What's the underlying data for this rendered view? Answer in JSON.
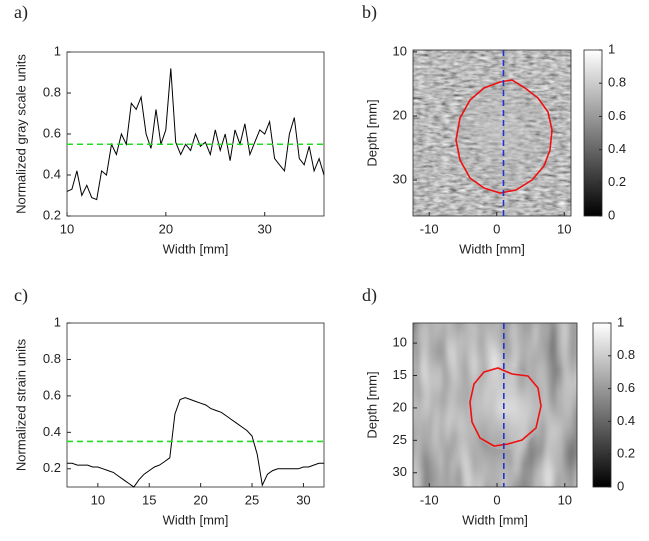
{
  "chart_data": [
    {
      "type": "line",
      "panel": "a)",
      "ylabel": "Normalized gray scale units",
      "xlabel": "Width [mm]",
      "xlim": [
        10,
        36
      ],
      "xticks": [
        10,
        20,
        30
      ],
      "ylim": [
        0.2,
        1
      ],
      "yticks": [
        0.2,
        0.4,
        0.6,
        0.8,
        1
      ],
      "color": "#000000",
      "hline": 0.55,
      "hline_color": "#22dd22",
      "x": [
        10,
        10.5,
        11,
        11.5,
        12,
        12.5,
        13,
        13.5,
        14,
        14.5,
        15,
        15.5,
        16,
        16.5,
        17,
        17.5,
        18,
        18.5,
        19,
        19.5,
        20,
        20.5,
        21,
        21.5,
        22,
        22.5,
        23,
        23.5,
        24,
        24.5,
        25,
        25.5,
        26,
        26.5,
        27,
        27.5,
        28,
        28.5,
        29,
        29.5,
        30,
        30.5,
        31,
        31.5,
        32,
        32.5,
        33,
        33.5,
        34,
        34.5,
        35,
        35.5,
        36
      ],
      "values": [
        0.32,
        0.33,
        0.42,
        0.3,
        0.35,
        0.29,
        0.28,
        0.42,
        0.4,
        0.55,
        0.5,
        0.6,
        0.55,
        0.75,
        0.72,
        0.78,
        0.6,
        0.53,
        0.72,
        0.55,
        0.62,
        0.92,
        0.56,
        0.5,
        0.55,
        0.52,
        0.6,
        0.54,
        0.56,
        0.5,
        0.62,
        0.52,
        0.6,
        0.47,
        0.62,
        0.55,
        0.65,
        0.5,
        0.56,
        0.62,
        0.6,
        0.66,
        0.48,
        0.45,
        0.42,
        0.6,
        0.68,
        0.48,
        0.45,
        0.54,
        0.42,
        0.48,
        0.4
      ]
    },
    {
      "type": "image",
      "panel": "b)",
      "ylabel": "Depth [mm]",
      "xlabel": "Width [mm]",
      "xlim": [
        -12.4,
        11
      ],
      "xticks": [
        -10,
        0,
        10
      ],
      "ylim": [
        35.6,
        9.7
      ],
      "yticks": [
        10,
        20,
        30
      ],
      "vline": 1,
      "vline_color": "#2233cc",
      "contour_color": "#ee1111",
      "clim": [
        0,
        1
      ],
      "cticks": [
        0,
        0.2,
        0.4,
        0.6,
        0.8,
        1
      ]
    },
    {
      "type": "line",
      "panel": "c)",
      "ylabel": "Normalized strain units",
      "xlabel": "Width [mm]",
      "xlim": [
        7,
        32
      ],
      "xticks": [
        10,
        15,
        20,
        25,
        30
      ],
      "ylim": [
        0.1,
        1
      ],
      "yticks": [
        0.2,
        0.4,
        0.6,
        0.8,
        1
      ],
      "color": "#000000",
      "hline": 0.35,
      "hline_color": "#22dd22",
      "x": [
        7,
        7.5,
        8,
        8.5,
        9,
        9.5,
        10,
        10.5,
        11,
        11.5,
        12,
        12.5,
        13,
        13.5,
        14,
        14.5,
        15,
        15.5,
        16,
        16.5,
        17,
        17.5,
        18,
        18.5,
        19,
        19.5,
        20,
        20.5,
        21,
        21.5,
        22,
        22.5,
        23,
        23.5,
        24,
        24.5,
        25,
        25.5,
        26,
        26.5,
        27,
        27.5,
        28,
        28.5,
        29,
        29.5,
        30,
        30.5,
        31,
        31.5,
        32
      ],
      "values": [
        0.23,
        0.23,
        0.22,
        0.22,
        0.22,
        0.21,
        0.21,
        0.2,
        0.19,
        0.18,
        0.16,
        0.14,
        0.12,
        0.1,
        0.14,
        0.17,
        0.19,
        0.21,
        0.22,
        0.24,
        0.26,
        0.5,
        0.58,
        0.59,
        0.58,
        0.57,
        0.56,
        0.55,
        0.53,
        0.52,
        0.51,
        0.49,
        0.47,
        0.45,
        0.43,
        0.41,
        0.38,
        0.28,
        0.11,
        0.17,
        0.19,
        0.2,
        0.2,
        0.2,
        0.2,
        0.2,
        0.21,
        0.21,
        0.22,
        0.23,
        0.23
      ]
    },
    {
      "type": "image",
      "panel": "d)",
      "ylabel": "Depth [mm]",
      "xlabel": "Width [mm]",
      "xlim": [
        -12.4,
        11.8
      ],
      "xticks": [
        -10,
        0,
        10
      ],
      "ylim": [
        32.2,
        6.9
      ],
      "yticks": [
        10,
        15,
        20,
        25,
        30
      ],
      "vline": 1,
      "vline_color": "#2233cc",
      "contour_color": "#ee1111",
      "clim": [
        0,
        1
      ],
      "cticks": [
        0,
        0.2,
        0.4,
        0.6,
        0.8,
        1
      ]
    }
  ]
}
